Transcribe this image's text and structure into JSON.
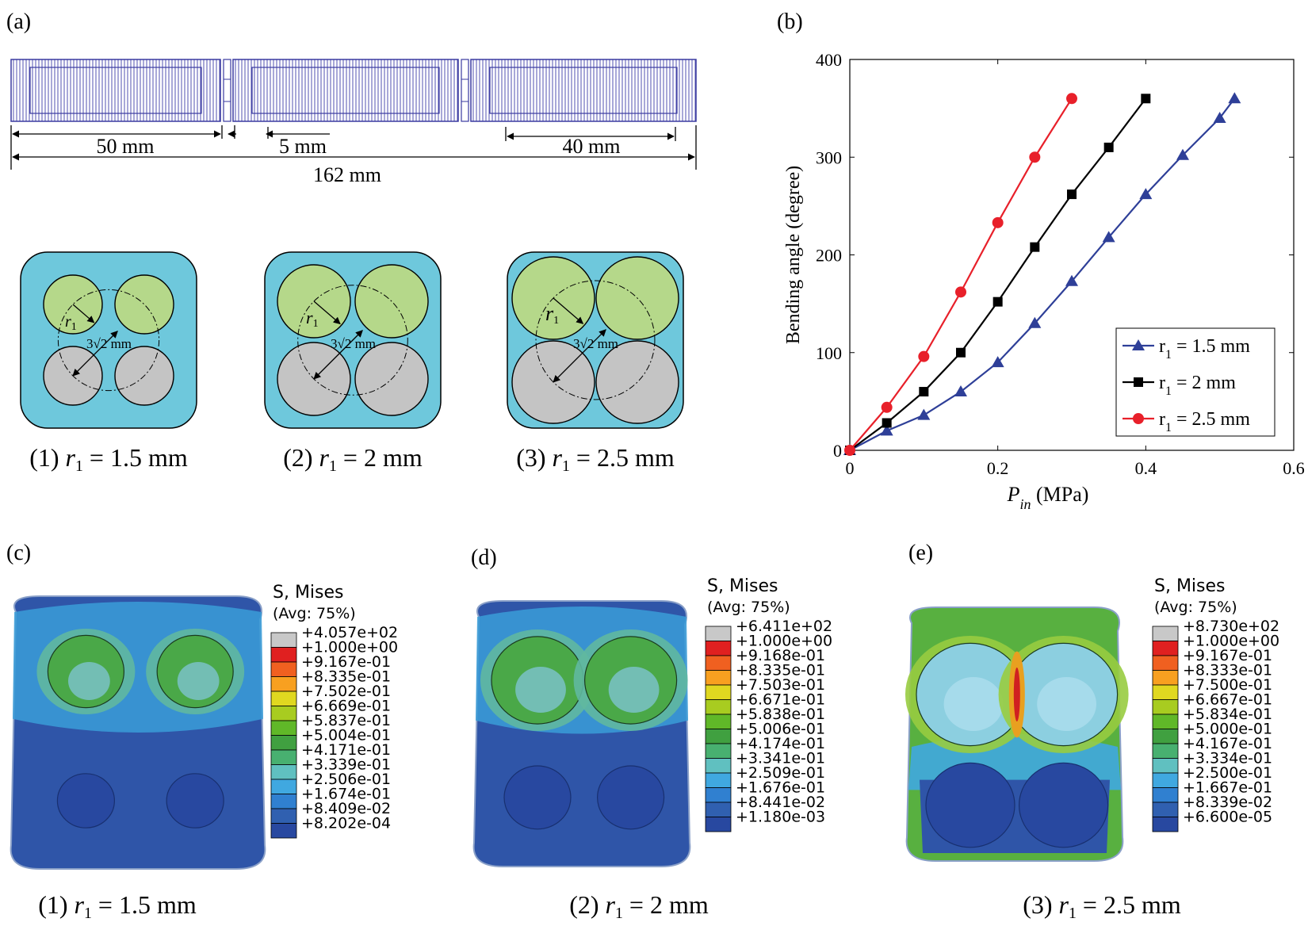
{
  "panel_labels": {
    "a": "(a)",
    "b": "(b)",
    "c": "(c)",
    "d": "(d)",
    "e": "(e)"
  },
  "panel_a": {
    "dimensions": {
      "segment": "50 mm",
      "gap": "5 mm",
      "end": "40 mm",
      "total": "162 mm"
    },
    "cross_sections": [
      {
        "caption_num": "(1)",
        "r_label": "r",
        "r_sub": "1",
        "caption_value": "= 1.5 mm",
        "dist_label": "3√2 mm"
      },
      {
        "caption_num": "(2)",
        "r_label": "r",
        "r_sub": "1",
        "caption_value": "= 2 mm",
        "dist_label": "3√2 mm"
      },
      {
        "caption_num": "(3)",
        "r_label": "r",
        "r_sub": "1",
        "caption_value": "= 2.5 mm",
        "dist_label": "3√2 mm"
      }
    ],
    "colors": {
      "body": "#6ec8dc",
      "top_chamber": "#b5d88a",
      "bottom_chamber": "#c4c4c4",
      "frame": "#3a3aa0"
    }
  },
  "chart_data": {
    "type": "line",
    "title": "",
    "xlabel_main": "P",
    "xlabel_sub": "in",
    "xlabel_unit": "(MPa)",
    "ylabel": "Bending angle (degree)",
    "xlim": [
      0,
      0.6
    ],
    "ylim": [
      0,
      400
    ],
    "xticks": [
      "0",
      "0.2",
      "0.4",
      "0.6"
    ],
    "yticks": [
      "0",
      "100",
      "200",
      "300",
      "400"
    ],
    "legend_position": "bottom-right",
    "series": [
      {
        "name": "r1 = 1.5 mm",
        "legend_r": "r",
        "legend_sub": "1",
        "legend_value": "= 1.5 mm",
        "color": "#2e3f98",
        "marker": "triangle",
        "x": [
          0,
          0.05,
          0.1,
          0.15,
          0.2,
          0.25,
          0.3,
          0.35,
          0.4,
          0.45,
          0.5,
          0.52
        ],
        "y": [
          0,
          20,
          36,
          60,
          90,
          130,
          173,
          218,
          262,
          302,
          340,
          360
        ]
      },
      {
        "name": "r1 = 2 mm",
        "legend_r": "r",
        "legend_sub": "1",
        "legend_value": "= 2 mm",
        "color": "#000000",
        "marker": "square",
        "x": [
          0,
          0.05,
          0.1,
          0.15,
          0.2,
          0.25,
          0.3,
          0.35,
          0.4
        ],
        "y": [
          0,
          28,
          60,
          100,
          152,
          208,
          262,
          310,
          360
        ]
      },
      {
        "name": "r1 = 2.5 mm",
        "legend_r": "r",
        "legend_sub": "1",
        "legend_value": "= 2.5 mm",
        "color": "#e8202a",
        "marker": "circle",
        "x": [
          0,
          0.05,
          0.1,
          0.15,
          0.2,
          0.25,
          0.3
        ],
        "y": [
          0,
          44,
          96,
          162,
          233,
          300,
          360
        ]
      }
    ]
  },
  "contours": [
    {
      "title": "S, Mises",
      "avg": "(Avg: 75%)",
      "caption_num": "(1)",
      "r_label": "r",
      "r_sub": "1",
      "caption_value": "= 1.5 mm",
      "values": [
        "+4.057e+02",
        "+1.000e+00",
        "+9.167e-01",
        "+8.335e-01",
        "+7.502e-01",
        "+6.669e-01",
        "+5.837e-01",
        "+5.004e-01",
        "+4.171e-01",
        "+3.339e-01",
        "+2.506e-01",
        "+1.674e-01",
        "+8.409e-02",
        "+8.202e-04"
      ]
    },
    {
      "title": "S, Mises",
      "avg": "(Avg: 75%)",
      "caption_num": "(2)",
      "r_label": "r",
      "r_sub": "1",
      "caption_value": "= 2 mm",
      "values": [
        "+6.411e+02",
        "+1.000e+00",
        "+9.168e-01",
        "+8.335e-01",
        "+7.503e-01",
        "+6.671e-01",
        "+5.838e-01",
        "+5.006e-01",
        "+4.174e-01",
        "+3.341e-01",
        "+2.509e-01",
        "+1.676e-01",
        "+8.441e-02",
        "+1.180e-03"
      ]
    },
    {
      "title": "S, Mises",
      "avg": "(Avg: 75%)",
      "caption_num": "(3)",
      "r_label": "r",
      "r_sub": "1",
      "caption_value": "= 2.5 mm",
      "values": [
        "+8.730e+02",
        "+1.000e+00",
        "+9.167e-01",
        "+8.333e-01",
        "+7.500e-01",
        "+6.667e-01",
        "+5.834e-01",
        "+5.000e-01",
        "+4.167e-01",
        "+3.334e-01",
        "+2.500e-01",
        "+1.667e-01",
        "+8.339e-02",
        "+6.600e-05"
      ]
    }
  ],
  "legend_colors": [
    "#c8c8c8",
    "#e02020",
    "#f06020",
    "#f8a020",
    "#e0d820",
    "#a8cc20",
    "#60b828",
    "#40a040",
    "#48b070",
    "#60c0c0",
    "#40a8e0",
    "#3080d0",
    "#3060b0",
    "#2848a0"
  ]
}
